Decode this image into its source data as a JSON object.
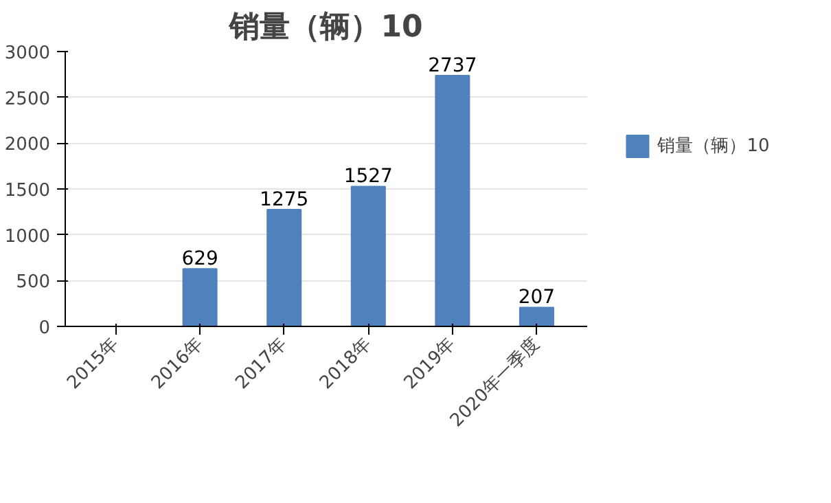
{
  "chart_data": {
    "type": "bar",
    "title": "销量（辆）10",
    "categories": [
      "2015年",
      "2016年",
      "2017年",
      "2018年",
      "2019年",
      "2020年一季度"
    ],
    "series": [
      {
        "name": "销量（辆）10",
        "color": "#4f81bd",
        "values": [
          null,
          629,
          1275,
          1527,
          2737,
          207
        ]
      }
    ],
    "ylim": [
      0,
      3000
    ],
    "yticks": [
      0,
      500,
      1000,
      1500,
      2000,
      2500,
      3000
    ],
    "grid": "y",
    "legend": "right",
    "data_labels": true
  }
}
